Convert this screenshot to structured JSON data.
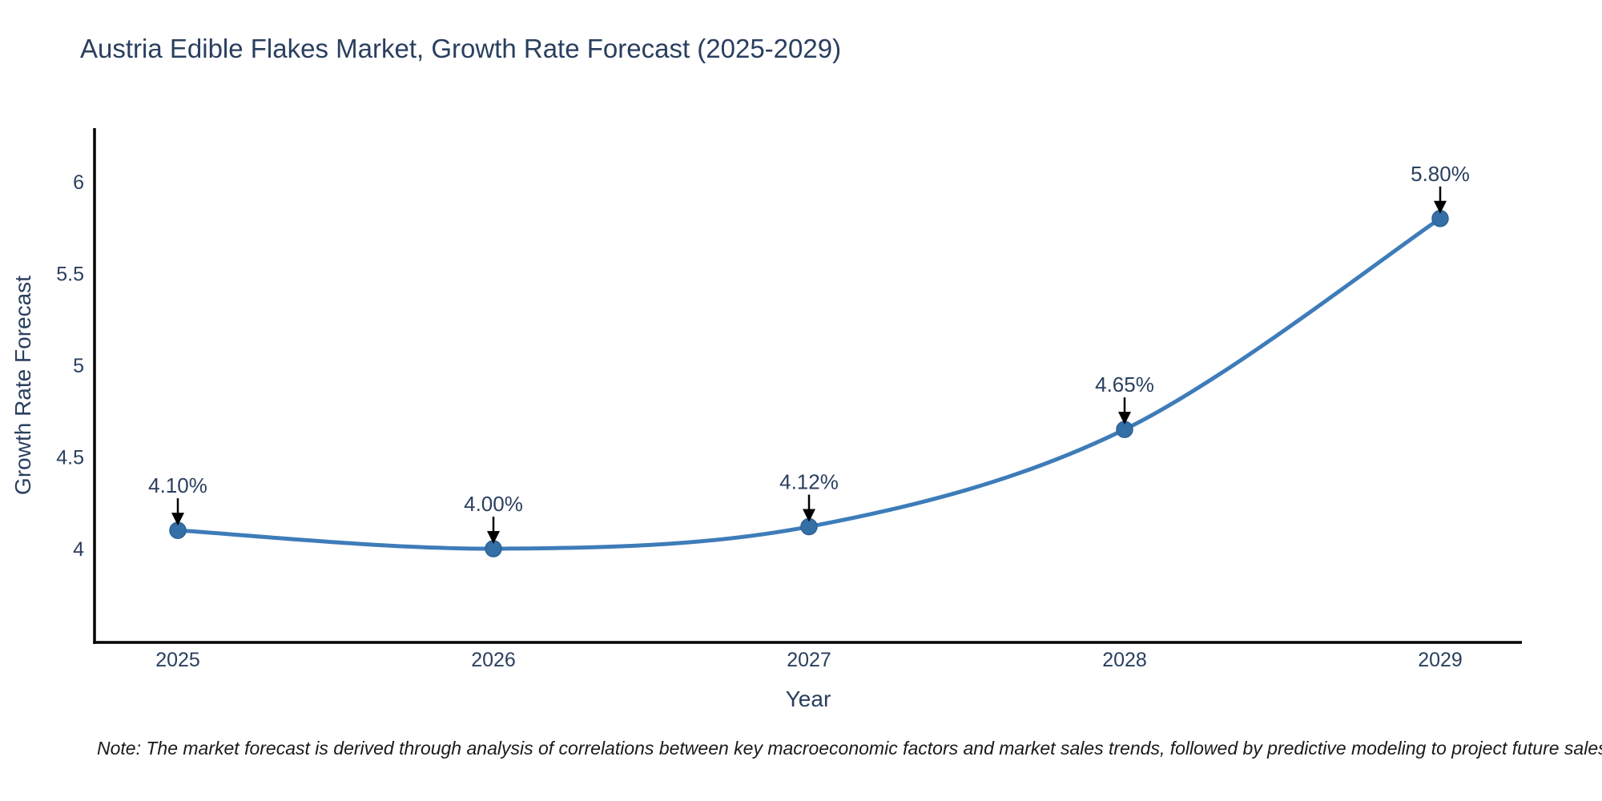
{
  "chart": {
    "title": "Austria Edible Flakes Market, Growth Rate Forecast (2025-2029)",
    "xlabel": "Year",
    "ylabel": "Growth Rate Forecast"
  },
  "chart_data": {
    "type": "line",
    "title": "Austria Edible Flakes Market, Growth Rate Forecast (2025-2029)",
    "xlabel": "Year",
    "ylabel": "Growth Rate Forecast",
    "categories": [
      "2025",
      "2026",
      "2027",
      "2028",
      "2029"
    ],
    "values": [
      4.1,
      4.0,
      4.12,
      4.65,
      5.8
    ],
    "point_labels": [
      "4.10%",
      "4.00%",
      "4.12%",
      "4.65%",
      "5.80%"
    ],
    "yticks": [
      4,
      4.5,
      5,
      5.5,
      6
    ],
    "ylim": [
      3.5,
      6.3
    ],
    "grid": false,
    "legend": false,
    "line_color": "#3E7CB9",
    "marker_color": "#346FA5",
    "marker_edge_color": "#2D6197",
    "axis_color": "#000000",
    "tick_label_color": "#2a3f5f",
    "annotation_text_color": "#2a3f5f",
    "annotation_arrow_color": "#000000"
  },
  "note": "Note: The market forecast is derived through analysis of correlations between key macroeconomic factors and market sales trends, followed by predictive modeling to project future sales"
}
